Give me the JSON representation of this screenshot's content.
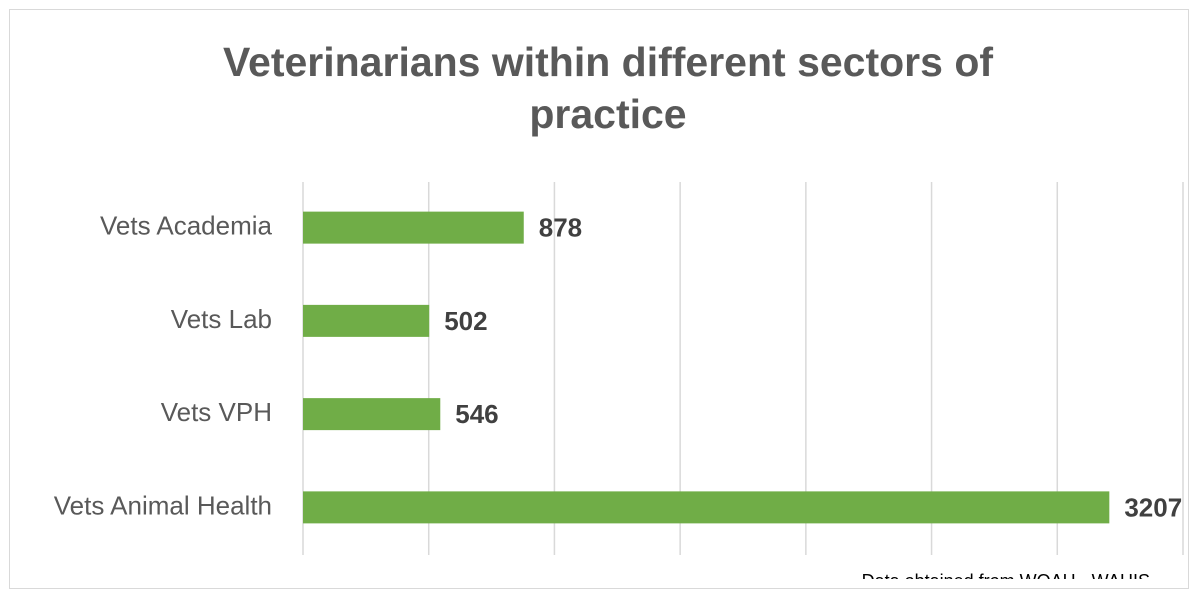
{
  "chart_data": {
    "type": "bar",
    "orientation": "horizontal",
    "title": "Veterinarians within different sectors of practice",
    "categories": [
      "Vets Academia",
      "Vets Lab",
      "Vets VPH",
      "Vets Animal Health"
    ],
    "values": [
      878,
      502,
      546,
      3207
    ],
    "color": "#70ad47",
    "xlim": [
      0,
      3500
    ],
    "xticks": [
      0,
      500,
      1000,
      1500,
      2000,
      2500,
      3000,
      3500
    ],
    "grid": true,
    "source": "Data obtained from WOAH - WAHIS"
  }
}
